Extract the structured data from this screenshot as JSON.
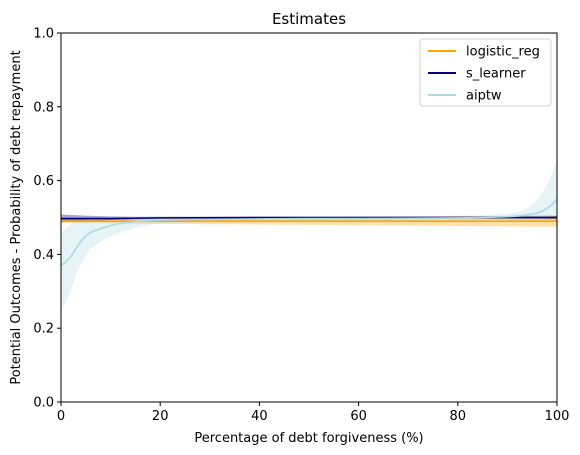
{
  "chart_data": {
    "type": "line",
    "title": "Estimates",
    "xlabel": "Percentage of debt forgiveness (%)",
    "ylabel": "Potential Outcomes - Probability of debt repayment",
    "xlim": [
      0,
      100
    ],
    "ylim": [
      0.0,
      1.0
    ],
    "xticks": [
      0,
      20,
      40,
      60,
      80,
      100
    ],
    "yticks": [
      0.0,
      0.2,
      0.4,
      0.6,
      0.8,
      1.0
    ],
    "xtick_labels": [
      "0",
      "20",
      "40",
      "60",
      "80",
      "100"
    ],
    "ytick_labels": [
      "0.0",
      "0.2",
      "0.4",
      "0.6",
      "0.8",
      "1.0"
    ],
    "grid": false,
    "legend_position": "top-right",
    "series": [
      {
        "name": "logistic_reg",
        "color": "#ffa500",
        "x": [
          0,
          100
        ],
        "y": [
          0.49,
          0.49
        ],
        "band_lower": [
          0.485,
          0.475
        ],
        "band_upper": [
          0.498,
          0.505
        ]
      },
      {
        "name": "s_learner",
        "color": "#000080",
        "x": [
          0,
          5,
          10,
          15,
          20,
          40,
          60,
          80,
          100
        ],
        "y": [
          0.497,
          0.497,
          0.497,
          0.498,
          0.499,
          0.5,
          0.5,
          0.5,
          0.5
        ],
        "band_lower": [
          0.49,
          0.49,
          0.493,
          0.495,
          0.497,
          0.498,
          0.498,
          0.497,
          0.495
        ],
        "band_upper": [
          0.508,
          0.505,
          0.503,
          0.502,
          0.502,
          0.502,
          0.502,
          0.503,
          0.505
        ]
      },
      {
        "name": "aiptw",
        "color": "#add8e6",
        "x": [
          0,
          1,
          2,
          3,
          4,
          5,
          6,
          8,
          10,
          12,
          15,
          18,
          20,
          30,
          40,
          50,
          60,
          70,
          80,
          85,
          90,
          92,
          94,
          96,
          97,
          98,
          99,
          100
        ],
        "y": [
          0.37,
          0.38,
          0.395,
          0.415,
          0.435,
          0.45,
          0.46,
          0.47,
          0.478,
          0.484,
          0.489,
          0.492,
          0.493,
          0.495,
          0.496,
          0.497,
          0.497,
          0.498,
          0.499,
          0.5,
          0.502,
          0.504,
          0.507,
          0.512,
          0.517,
          0.525,
          0.535,
          0.55
        ],
        "band_lower": [
          0.25,
          0.27,
          0.3,
          0.345,
          0.375,
          0.395,
          0.415,
          0.435,
          0.45,
          0.46,
          0.472,
          0.48,
          0.483,
          0.488,
          0.49,
          0.49,
          0.49,
          0.49,
          0.49,
          0.49,
          0.49,
          0.491,
          0.492,
          0.494,
          0.496,
          0.5,
          0.505,
          0.51
        ],
        "band_upper": [
          0.46,
          0.47,
          0.48,
          0.487,
          0.492,
          0.495,
          0.497,
          0.499,
          0.5,
          0.5,
          0.501,
          0.502,
          0.503,
          0.503,
          0.503,
          0.503,
          0.504,
          0.504,
          0.505,
          0.506,
          0.51,
          0.515,
          0.525,
          0.545,
          0.565,
          0.59,
          0.62,
          0.66
        ]
      }
    ]
  }
}
